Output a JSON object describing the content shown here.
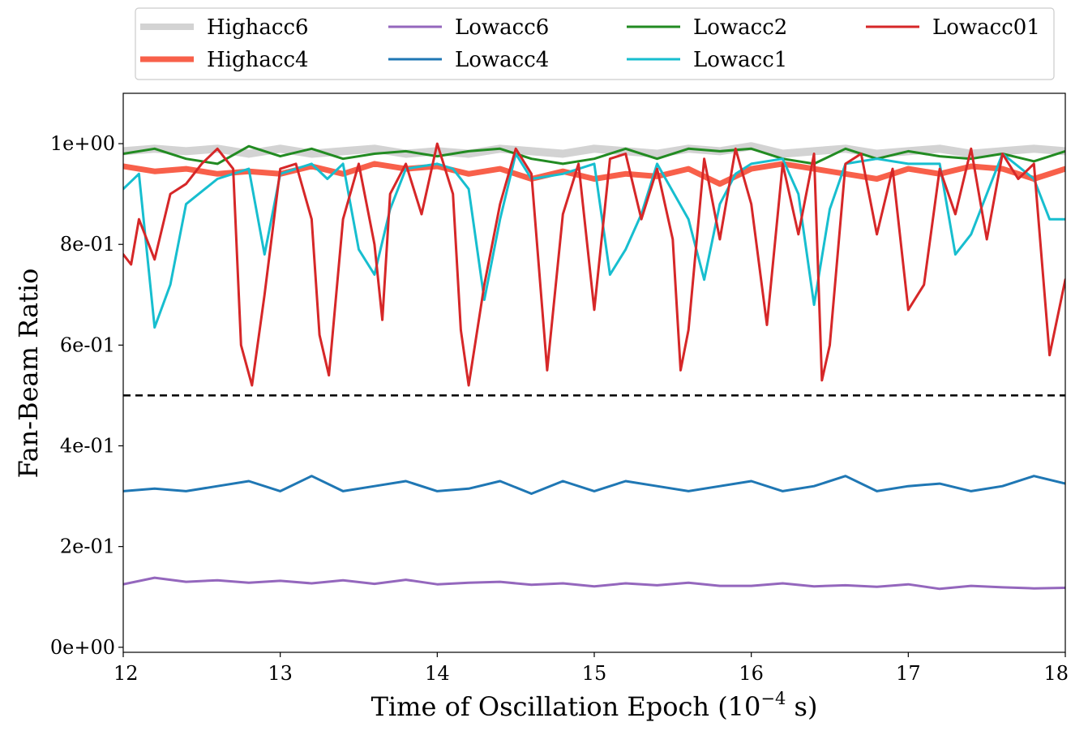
{
  "chart_data": {
    "type": "line",
    "xlabel": "Time of Oscillation Epoch (10",
    "xlabel_exp": "−4",
    "xlabel_unit": " s)",
    "ylabel": "Fan-Beam Ratio",
    "xlim": [
      12,
      18
    ],
    "ylim": [
      -0.01,
      1.1
    ],
    "xticks": [
      12,
      13,
      14,
      15,
      16,
      17,
      18
    ],
    "xtick_labels": [
      "12",
      "13",
      "14",
      "15",
      "16",
      "17",
      "18"
    ],
    "yticks": [
      0,
      0.2,
      0.4,
      0.6,
      0.8,
      1.0
    ],
    "ytick_labels": [
      "0e+00",
      "2e-01",
      "4e-01",
      "6e-01",
      "8e-01",
      "1e+00"
    ],
    "reference_line": {
      "y": 0.5,
      "style": "dashed",
      "color": "#000000"
    },
    "legend_position": "above plot, 4 columns",
    "series": [
      {
        "name": "Highacc6",
        "color": "#d3d3d3",
        "width": 10,
        "x": [
          12.0,
          12.2,
          12.4,
          12.6,
          12.8,
          13.0,
          13.2,
          13.4,
          13.6,
          13.8,
          14.0,
          14.2,
          14.4,
          14.6,
          14.8,
          15.0,
          15.2,
          15.4,
          15.6,
          15.8,
          16.0,
          16.2,
          16.4,
          16.6,
          16.8,
          17.0,
          17.2,
          17.4,
          17.6,
          17.8,
          18.0
        ],
        "y": [
          0.985,
          0.99,
          0.985,
          0.99,
          0.98,
          0.99,
          0.98,
          0.985,
          0.99,
          0.98,
          0.985,
          0.98,
          0.99,
          0.985,
          0.98,
          0.99,
          0.985,
          0.98,
          0.99,
          0.985,
          0.995,
          0.98,
          0.985,
          0.99,
          0.98,
          0.985,
          0.99,
          0.98,
          0.985,
          0.99,
          0.985
        ]
      },
      {
        "name": "Highacc4",
        "color": "#f8604a",
        "width": 7,
        "x": [
          12.0,
          12.2,
          12.4,
          12.6,
          12.8,
          13.0,
          13.2,
          13.4,
          13.6,
          13.8,
          14.0,
          14.2,
          14.4,
          14.6,
          14.8,
          15.0,
          15.2,
          15.4,
          15.6,
          15.8,
          16.0,
          16.2,
          16.4,
          16.6,
          16.8,
          17.0,
          17.2,
          17.4,
          17.6,
          17.8,
          18.0
        ],
        "y": [
          0.955,
          0.945,
          0.95,
          0.94,
          0.945,
          0.94,
          0.955,
          0.94,
          0.96,
          0.95,
          0.955,
          0.94,
          0.95,
          0.93,
          0.945,
          0.93,
          0.94,
          0.935,
          0.95,
          0.92,
          0.95,
          0.96,
          0.95,
          0.94,
          0.93,
          0.95,
          0.94,
          0.955,
          0.95,
          0.93,
          0.95
        ]
      },
      {
        "name": "Lowacc6",
        "color": "#9467bd",
        "width": 3,
        "x": [
          12.0,
          12.2,
          12.4,
          12.6,
          12.8,
          13.0,
          13.2,
          13.4,
          13.6,
          13.8,
          14.0,
          14.2,
          14.4,
          14.6,
          14.8,
          15.0,
          15.2,
          15.4,
          15.6,
          15.8,
          16.0,
          16.2,
          16.4,
          16.6,
          16.8,
          17.0,
          17.2,
          17.4,
          17.6,
          17.8,
          18.0
        ],
        "y": [
          0.125,
          0.138,
          0.13,
          0.133,
          0.128,
          0.132,
          0.127,
          0.133,
          0.126,
          0.134,
          0.125,
          0.128,
          0.13,
          0.124,
          0.127,
          0.121,
          0.127,
          0.123,
          0.128,
          0.122,
          0.122,
          0.127,
          0.121,
          0.123,
          0.12,
          0.125,
          0.116,
          0.122,
          0.119,
          0.117,
          0.118
        ]
      },
      {
        "name": "Lowacc4",
        "color": "#1f77b4",
        "width": 3,
        "x": [
          12.0,
          12.2,
          12.4,
          12.6,
          12.8,
          13.0,
          13.2,
          13.4,
          13.6,
          13.8,
          14.0,
          14.2,
          14.4,
          14.6,
          14.8,
          15.0,
          15.2,
          15.4,
          15.6,
          15.8,
          16.0,
          16.2,
          16.4,
          16.6,
          16.8,
          17.0,
          17.2,
          17.4,
          17.6,
          17.8,
          18.0
        ],
        "y": [
          0.31,
          0.315,
          0.31,
          0.32,
          0.33,
          0.31,
          0.34,
          0.31,
          0.32,
          0.33,
          0.31,
          0.315,
          0.33,
          0.305,
          0.33,
          0.31,
          0.33,
          0.32,
          0.31,
          0.32,
          0.33,
          0.31,
          0.32,
          0.34,
          0.31,
          0.32,
          0.325,
          0.31,
          0.32,
          0.34,
          0.325
        ]
      },
      {
        "name": "Lowacc2",
        "color": "#228b22",
        "width": 3,
        "x": [
          12.0,
          12.2,
          12.4,
          12.6,
          12.8,
          13.0,
          13.2,
          13.4,
          13.6,
          13.8,
          14.0,
          14.2,
          14.4,
          14.6,
          14.8,
          15.0,
          15.2,
          15.4,
          15.6,
          15.8,
          16.0,
          16.2,
          16.4,
          16.6,
          16.8,
          17.0,
          17.2,
          17.4,
          17.6,
          17.8,
          18.0
        ],
        "y": [
          0.98,
          0.99,
          0.97,
          0.96,
          0.995,
          0.975,
          0.99,
          0.97,
          0.98,
          0.985,
          0.975,
          0.985,
          0.99,
          0.97,
          0.96,
          0.97,
          0.99,
          0.97,
          0.99,
          0.985,
          0.99,
          0.97,
          0.96,
          0.99,
          0.97,
          0.985,
          0.975,
          0.97,
          0.98,
          0.965,
          0.985
        ]
      },
      {
        "name": "Lowacc1",
        "color": "#17becf",
        "width": 3,
        "x": [
          12.0,
          12.1,
          12.2,
          12.3,
          12.4,
          12.6,
          12.8,
          12.9,
          13.0,
          13.2,
          13.3,
          13.4,
          13.5,
          13.6,
          13.7,
          13.8,
          14.0,
          14.1,
          14.2,
          14.3,
          14.4,
          14.5,
          14.6,
          14.8,
          15.0,
          15.1,
          15.2,
          15.3,
          15.4,
          15.6,
          15.7,
          15.8,
          15.9,
          16.0,
          16.2,
          16.3,
          16.4,
          16.5,
          16.6,
          16.8,
          17.0,
          17.2,
          17.3,
          17.4,
          17.6,
          17.8,
          17.9,
          18.0
        ],
        "y": [
          0.91,
          0.94,
          0.635,
          0.72,
          0.88,
          0.93,
          0.95,
          0.78,
          0.94,
          0.96,
          0.93,
          0.96,
          0.79,
          0.74,
          0.87,
          0.95,
          0.96,
          0.95,
          0.91,
          0.69,
          0.85,
          0.98,
          0.93,
          0.94,
          0.96,
          0.74,
          0.79,
          0.86,
          0.96,
          0.85,
          0.73,
          0.88,
          0.94,
          0.96,
          0.97,
          0.9,
          0.68,
          0.87,
          0.96,
          0.97,
          0.96,
          0.96,
          0.78,
          0.82,
          0.98,
          0.93,
          0.85,
          0.85
        ]
      },
      {
        "name": "Lowacc01",
        "color": "#d62728",
        "width": 3,
        "x": [
          12.0,
          12.05,
          12.1,
          12.2,
          12.3,
          12.4,
          12.5,
          12.6,
          12.7,
          12.75,
          12.82,
          12.9,
          13.0,
          13.1,
          13.2,
          13.25,
          13.31,
          13.4,
          13.5,
          13.6,
          13.65,
          13.7,
          13.8,
          13.9,
          14.0,
          14.1,
          14.15,
          14.2,
          14.3,
          14.4,
          14.5,
          14.6,
          14.7,
          14.8,
          14.9,
          15.0,
          15.1,
          15.2,
          15.3,
          15.4,
          15.5,
          15.55,
          15.6,
          15.7,
          15.8,
          15.9,
          16.0,
          16.1,
          16.2,
          16.3,
          16.4,
          16.45,
          16.5,
          16.6,
          16.7,
          16.8,
          16.9,
          17.0,
          17.1,
          17.2,
          17.3,
          17.4,
          17.5,
          17.6,
          17.7,
          17.8,
          17.9,
          18.0
        ],
        "y": [
          0.78,
          0.76,
          0.85,
          0.77,
          0.9,
          0.92,
          0.96,
          0.99,
          0.95,
          0.6,
          0.52,
          0.7,
          0.95,
          0.96,
          0.85,
          0.62,
          0.54,
          0.85,
          0.96,
          0.8,
          0.65,
          0.9,
          0.96,
          0.86,
          1.0,
          0.9,
          0.63,
          0.52,
          0.72,
          0.88,
          0.99,
          0.94,
          0.55,
          0.86,
          0.96,
          0.67,
          0.97,
          0.98,
          0.85,
          0.95,
          0.81,
          0.55,
          0.63,
          0.97,
          0.81,
          0.99,
          0.88,
          0.64,
          0.96,
          0.82,
          0.98,
          0.53,
          0.6,
          0.96,
          0.98,
          0.82,
          0.95,
          0.67,
          0.72,
          0.95,
          0.86,
          0.99,
          0.81,
          0.98,
          0.93,
          0.96,
          0.58,
          0.73
        ]
      }
    ]
  }
}
